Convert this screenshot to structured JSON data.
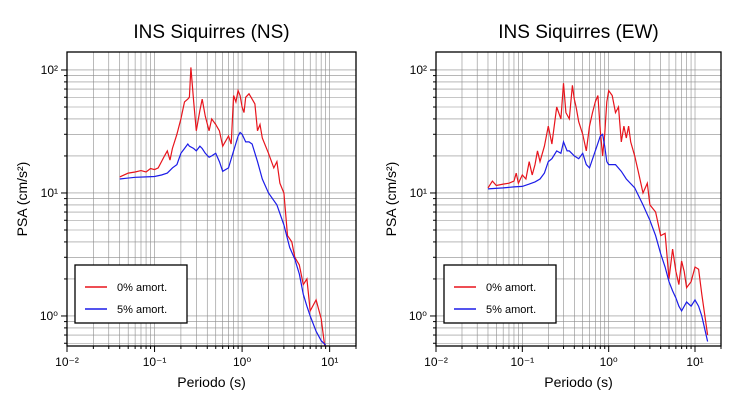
{
  "chart_data": [
    {
      "type": "line",
      "title": "INS Siquirres (NS)",
      "xlabel": "Periodo (s)",
      "ylabel": "PSA (cm/s²)",
      "xscale": "log",
      "yscale": "log",
      "xlim": [
        0.01,
        20
      ],
      "ylim": [
        0.57,
        140
      ],
      "grid": "on",
      "legend_location": "lower-left",
      "x_ticks": [
        "10⁻²",
        "10⁻¹",
        "10⁰",
        "10¹"
      ],
      "y_ticks": [
        "10⁰",
        "10¹",
        "10²"
      ],
      "series": [
        {
          "name": "0% amort.",
          "color": "#e8141c",
          "points": [
            [
              0.04,
              13.5
            ],
            [
              0.05,
              14.5
            ],
            [
              0.06,
              14.8
            ],
            [
              0.07,
              15.2
            ],
            [
              0.08,
              14.8
            ],
            [
              0.09,
              15.8
            ],
            [
              0.1,
              15.5
            ],
            [
              0.11,
              16
            ],
            [
              0.12,
              18
            ],
            [
              0.13,
              20
            ],
            [
              0.14,
              22
            ],
            [
              0.15,
              18.5
            ],
            [
              0.16,
              23
            ],
            [
              0.18,
              30
            ],
            [
              0.2,
              40
            ],
            [
              0.22,
              55
            ],
            [
              0.24,
              58
            ],
            [
              0.25,
              60
            ],
            [
              0.26,
              105
            ],
            [
              0.28,
              55
            ],
            [
              0.3,
              32
            ],
            [
              0.33,
              47
            ],
            [
              0.35,
              58
            ],
            [
              0.38,
              42
            ],
            [
              0.42,
              32
            ],
            [
              0.45,
              40
            ],
            [
              0.5,
              36
            ],
            [
              0.55,
              32
            ],
            [
              0.6,
              24
            ],
            [
              0.7,
              29
            ],
            [
              0.75,
              25
            ],
            [
              0.8,
              62
            ],
            [
              0.85,
              55
            ],
            [
              0.9,
              68
            ],
            [
              0.95,
              62
            ],
            [
              1.0,
              50
            ],
            [
              1.05,
              45
            ],
            [
              1.1,
              60
            ],
            [
              1.2,
              64
            ],
            [
              1.3,
              58
            ],
            [
              1.4,
              53
            ],
            [
              1.5,
              32
            ],
            [
              1.6,
              36
            ],
            [
              1.7,
              28
            ],
            [
              2.0,
              21
            ],
            [
              2.3,
              16
            ],
            [
              2.5,
              18
            ],
            [
              2.7,
              12
            ],
            [
              3.0,
              10
            ],
            [
              3.3,
              4.5
            ],
            [
              3.7,
              4.0
            ],
            [
              4.0,
              3.0
            ],
            [
              4.5,
              2.6
            ],
            [
              5.0,
              1.8
            ],
            [
              5.5,
              2.0
            ],
            [
              6.0,
              1.1
            ],
            [
              7.0,
              1.35
            ],
            [
              8.0,
              0.95
            ],
            [
              9.0,
              0.5
            ]
          ]
        },
        {
          "name": "5% amort.",
          "color": "#1c1ce8",
          "points": [
            [
              0.04,
              13.0
            ],
            [
              0.06,
              13.4
            ],
            [
              0.08,
              13.5
            ],
            [
              0.1,
              13.6
            ],
            [
              0.12,
              14
            ],
            [
              0.14,
              14.5
            ],
            [
              0.16,
              16
            ],
            [
              0.18,
              17
            ],
            [
              0.2,
              21
            ],
            [
              0.22,
              23
            ],
            [
              0.24,
              25
            ],
            [
              0.25,
              24
            ],
            [
              0.28,
              23
            ],
            [
              0.3,
              22
            ],
            [
              0.33,
              24
            ],
            [
              0.35,
              23
            ],
            [
              0.38,
              21
            ],
            [
              0.42,
              19.5
            ],
            [
              0.45,
              20
            ],
            [
              0.5,
              21
            ],
            [
              0.55,
              18
            ],
            [
              0.6,
              15
            ],
            [
              0.7,
              16
            ],
            [
              0.8,
              22
            ],
            [
              0.9,
              29
            ],
            [
              0.95,
              31
            ],
            [
              1.0,
              30
            ],
            [
              1.1,
              26
            ],
            [
              1.2,
              26
            ],
            [
              1.3,
              25
            ],
            [
              1.5,
              18
            ],
            [
              1.7,
              13
            ],
            [
              2.0,
              10
            ],
            [
              2.5,
              8.0
            ],
            [
              3.0,
              5.5
            ],
            [
              3.5,
              3.6
            ],
            [
              4.0,
              2.9
            ],
            [
              4.5,
              2.2
            ],
            [
              5.0,
              1.5
            ],
            [
              5.5,
              1.2
            ],
            [
              6.0,
              1.0
            ],
            [
              7.0,
              0.75
            ],
            [
              8.0,
              0.63
            ],
            [
              9.0,
              0.58
            ]
          ]
        }
      ]
    },
    {
      "type": "line",
      "title": "INS Siquirres (EW)",
      "xlabel": "Periodo (s)",
      "ylabel": "PSA (cm/s²)",
      "xscale": "log",
      "yscale": "log",
      "xlim": [
        0.01,
        20
      ],
      "ylim": [
        0.57,
        140
      ],
      "grid": "on",
      "legend_location": "lower-left",
      "x_ticks": [
        "10⁻²",
        "10⁻¹",
        "10⁰",
        "10¹"
      ],
      "y_ticks": [
        "10⁰",
        "10¹",
        "10²"
      ],
      "series": [
        {
          "name": "0% amort.",
          "color": "#e8141c",
          "points": [
            [
              0.04,
              11
            ],
            [
              0.045,
              12.5
            ],
            [
              0.05,
              11.5
            ],
            [
              0.06,
              11.8
            ],
            [
              0.07,
              12
            ],
            [
              0.08,
              12.5
            ],
            [
              0.085,
              14.5
            ],
            [
              0.09,
              12
            ],
            [
              0.1,
              14
            ],
            [
              0.11,
              13
            ],
            [
              0.12,
              18
            ],
            [
              0.13,
              14
            ],
            [
              0.14,
              17
            ],
            [
              0.15,
              22
            ],
            [
              0.16,
              18
            ],
            [
              0.18,
              24
            ],
            [
              0.2,
              35
            ],
            [
              0.22,
              25
            ],
            [
              0.25,
              50
            ],
            [
              0.28,
              40
            ],
            [
              0.3,
              78
            ],
            [
              0.32,
              45
            ],
            [
              0.35,
              40
            ],
            [
              0.38,
              75
            ],
            [
              0.4,
              58
            ],
            [
              0.42,
              50
            ],
            [
              0.45,
              38
            ],
            [
              0.5,
              30
            ],
            [
              0.55,
              22
            ],
            [
              0.6,
              35
            ],
            [
              0.65,
              45
            ],
            [
              0.7,
              55
            ],
            [
              0.75,
              62
            ],
            [
              0.8,
              32
            ],
            [
              0.85,
              20
            ],
            [
              0.9,
              30
            ],
            [
              0.95,
              55
            ],
            [
              1.0,
              68
            ],
            [
              1.1,
              62
            ],
            [
              1.2,
              45
            ],
            [
              1.3,
              50
            ],
            [
              1.4,
              26
            ],
            [
              1.5,
              35
            ],
            [
              1.6,
              28
            ],
            [
              1.7,
              35
            ],
            [
              1.8,
              26
            ],
            [
              2.0,
              20
            ],
            [
              2.2,
              15
            ],
            [
              2.5,
              10
            ],
            [
              2.8,
              12
            ],
            [
              3.0,
              8
            ],
            [
              3.5,
              7
            ],
            [
              4.0,
              4.5
            ],
            [
              4.5,
              4.7
            ],
            [
              5.0,
              2.0
            ],
            [
              5.5,
              3.5
            ],
            [
              6.0,
              2.3
            ],
            [
              6.5,
              1.8
            ],
            [
              7.0,
              2.8
            ],
            [
              7.5,
              2.3
            ],
            [
              8.0,
              1.7
            ],
            [
              9.0,
              1.9
            ],
            [
              10.0,
              2.5
            ],
            [
              11.0,
              2.4
            ],
            [
              12.0,
              1.5
            ],
            [
              14.0,
              0.7
            ]
          ]
        },
        {
          "name": "5% amort.",
          "color": "#1c1ce8",
          "points": [
            [
              0.04,
              10.8
            ],
            [
              0.06,
              11
            ],
            [
              0.08,
              11.2
            ],
            [
              0.1,
              11.3
            ],
            [
              0.12,
              11.8
            ],
            [
              0.14,
              12.3
            ],
            [
              0.16,
              13
            ],
            [
              0.18,
              14.5
            ],
            [
              0.2,
              18
            ],
            [
              0.22,
              19
            ],
            [
              0.25,
              22
            ],
            [
              0.28,
              21
            ],
            [
              0.3,
              26
            ],
            [
              0.33,
              22
            ],
            [
              0.35,
              22
            ],
            [
              0.4,
              20
            ],
            [
              0.45,
              19
            ],
            [
              0.5,
              21
            ],
            [
              0.55,
              17
            ],
            [
              0.6,
              16
            ],
            [
              0.7,
              22
            ],
            [
              0.8,
              29
            ],
            [
              0.85,
              30
            ],
            [
              0.9,
              24
            ],
            [
              0.95,
              18
            ],
            [
              1.0,
              17
            ],
            [
              1.2,
              17
            ],
            [
              1.4,
              15
            ],
            [
              1.6,
              13
            ],
            [
              2.0,
              11
            ],
            [
              2.5,
              8
            ],
            [
              3.0,
              6
            ],
            [
              3.5,
              4.5
            ],
            [
              4.0,
              3.2
            ],
            [
              4.5,
              2.5
            ],
            [
              5.0,
              1.9
            ],
            [
              5.5,
              1.6
            ],
            [
              6.0,
              1.4
            ],
            [
              6.5,
              1.2
            ],
            [
              7.0,
              1.1
            ],
            [
              8.0,
              1.3
            ],
            [
              9.0,
              1.2
            ],
            [
              10.0,
              1.35
            ],
            [
              11.0,
              1.2
            ],
            [
              12.0,
              1.0
            ],
            [
              14.0,
              0.62
            ]
          ]
        }
      ]
    }
  ]
}
